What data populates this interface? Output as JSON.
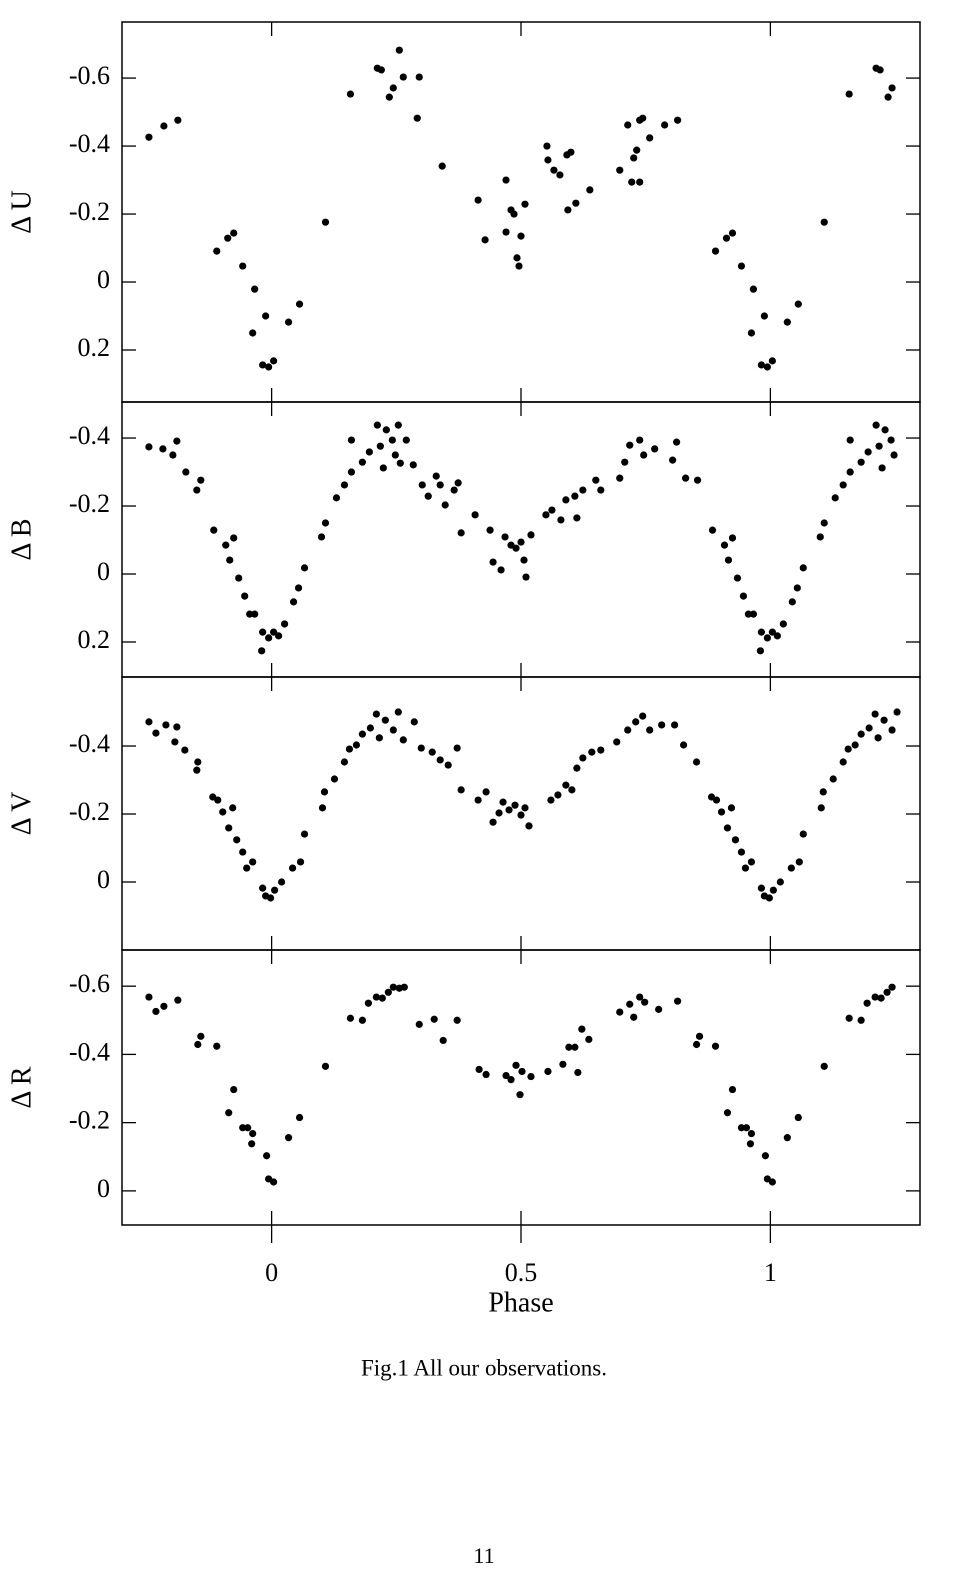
{
  "chart_data": [
    {
      "type": "scatter",
      "ylabel": "Δ U",
      "xlim": [
        -0.3,
        1.3
      ],
      "xticks": [
        0,
        0.5,
        1
      ],
      "ylim": [
        0.353,
        -0.765
      ],
      "yticks": [
        -0.6,
        -0.4,
        -0.2,
        0,
        0.2
      ],
      "x": [
        -0.246,
        -0.216,
        -0.188,
        -0.11,
        -0.088,
        -0.076,
        -0.058,
        -0.034,
        -0.038,
        -0.012,
        -0.018,
        -0.006,
        0.004,
        0.034,
        0.056,
        0.108,
        0.158,
        0.212,
        0.22,
        0.236,
        0.244,
        0.256,
        0.264,
        0.296,
        0.292,
        0.342,
        0.414,
        0.428,
        0.47,
        0.47,
        0.48,
        0.486,
        0.492,
        0.496,
        0.5,
        0.508,
        0.552,
        0.554,
        0.566,
        0.578,
        0.592,
        0.6,
        0.594,
        0.61,
        0.638,
        0.698,
        0.714,
        0.722,
        0.726,
        0.738,
        0.738,
        0.732,
        0.744,
        0.758,
        0.788,
        0.814,
        0.89,
        0.912,
        0.924,
        0.942,
        0.966,
        0.962,
        0.988,
        0.982,
        0.994,
        1.004,
        1.034,
        1.056,
        1.108,
        1.158,
        1.212,
        1.22,
        1.236,
        1.244
      ],
      "values": [
        -0.426,
        -0.459,
        -0.476,
        -0.091,
        -0.129,
        -0.144,
        -0.047,
        0.021,
        0.15,
        0.1,
        0.244,
        0.25,
        0.232,
        0.118,
        0.065,
        -0.176,
        -0.553,
        -0.629,
        -0.624,
        -0.544,
        -0.571,
        -0.682,
        -0.603,
        -0.603,
        -0.482,
        -0.341,
        -0.241,
        -0.124,
        -0.3,
        -0.147,
        -0.212,
        -0.2,
        -0.071,
        -0.047,
        -0.135,
        -0.229,
        -0.4,
        -0.359,
        -0.329,
        -0.315,
        -0.374,
        -0.382,
        -0.212,
        -0.232,
        -0.271,
        -0.329,
        -0.462,
        -0.294,
        -0.365,
        -0.294,
        -0.476,
        -0.388,
        -0.482,
        -0.424,
        -0.462,
        -0.476,
        -0.091,
        -0.129,
        -0.144,
        -0.047,
        0.021,
        0.15,
        0.1,
        0.244,
        0.25,
        0.232,
        0.118,
        0.065,
        -0.176,
        -0.553,
        -0.629,
        -0.624,
        -0.544,
        -0.571
      ]
    },
    {
      "type": "scatter",
      "ylabel": "Δ B",
      "xlim": [
        -0.3,
        1.3
      ],
      "xticks": [
        0,
        0.5,
        1
      ],
      "ylim": [
        0.303,
        -0.506
      ],
      "yticks": [
        -0.4,
        -0.2,
        0,
        0.2
      ],
      "x": [
        -0.246,
        -0.218,
        -0.19,
        -0.198,
        -0.172,
        -0.142,
        -0.15,
        -0.116,
        -0.092,
        -0.076,
        -0.084,
        -0.066,
        -0.054,
        -0.044,
        -0.034,
        -0.02,
        -0.018,
        -0.006,
        0.004,
        0.014,
        0.026,
        0.044,
        0.054,
        0.066,
        0.1,
        0.108,
        0.13,
        0.146,
        0.16,
        0.16,
        0.182,
        0.196,
        0.212,
        0.218,
        0.224,
        0.23,
        0.242,
        0.248,
        0.254,
        0.258,
        0.27,
        0.284,
        0.302,
        0.314,
        0.33,
        0.338,
        0.348,
        0.366,
        0.374,
        0.38,
        0.408,
        0.438,
        0.444,
        0.46,
        0.468,
        0.48,
        0.49,
        0.5,
        0.506,
        0.51,
        0.52,
        0.55,
        0.562,
        0.58,
        0.59,
        0.608,
        0.612,
        0.624,
        0.65,
        0.66,
        0.698,
        0.708,
        0.718,
        0.738,
        0.746,
        0.768,
        0.804,
        0.812,
        0.83,
        0.854,
        0.884,
        0.908,
        0.924,
        0.916,
        0.934,
        0.946,
        0.956,
        0.966,
        0.98,
        0.982,
        0.994,
        1.004,
        1.014,
        1.026,
        1.044,
        1.054,
        1.066,
        1.1,
        1.108,
        1.13,
        1.146,
        1.16,
        1.16,
        1.182,
        1.196,
        1.212,
        1.218,
        1.224,
        1.23,
        1.242,
        1.248
      ],
      "values": [
        -0.374,
        -0.368,
        -0.391,
        -0.35,
        -0.3,
        -0.276,
        -0.247,
        -0.129,
        -0.085,
        -0.106,
        -0.041,
        0.012,
        0.065,
        0.118,
        0.118,
        0.226,
        0.171,
        0.188,
        0.171,
        0.182,
        0.147,
        0.082,
        0.041,
        -0.018,
        -0.109,
        -0.15,
        -0.224,
        -0.262,
        -0.3,
        -0.394,
        -0.329,
        -0.359,
        -0.438,
        -0.376,
        -0.312,
        -0.424,
        -0.394,
        -0.35,
        -0.438,
        -0.326,
        -0.394,
        -0.321,
        -0.262,
        -0.229,
        -0.288,
        -0.262,
        -0.203,
        -0.247,
        -0.268,
        -0.121,
        -0.174,
        -0.129,
        -0.035,
        -0.012,
        -0.109,
        -0.085,
        -0.076,
        -0.094,
        -0.041,
        0.009,
        -0.115,
        -0.174,
        -0.188,
        -0.159,
        -0.218,
        -0.229,
        -0.165,
        -0.247,
        -0.276,
        -0.247,
        -0.282,
        -0.329,
        -0.379,
        -0.394,
        -0.35,
        -0.368,
        -0.335,
        -0.388,
        -0.282,
        -0.276,
        -0.129,
        -0.085,
        -0.106,
        -0.041,
        0.012,
        0.065,
        0.118,
        0.118,
        0.226,
        0.171,
        0.188,
        0.171,
        0.182,
        0.147,
        0.082,
        0.041,
        -0.018,
        -0.109,
        -0.15,
        -0.224,
        -0.262,
        -0.3,
        -0.394,
        -0.329,
        -0.359,
        -0.438,
        -0.376,
        -0.312,
        -0.424,
        -0.394,
        -0.35
      ]
    },
    {
      "type": "scatter",
      "ylabel": "Δ V",
      "xlim": [
        -0.3,
        1.3
      ],
      "xticks": [
        0,
        0.5,
        1
      ],
      "ylim": [
        0.2,
        -0.603
      ],
      "yticks": [
        -0.4,
        -0.2,
        0
      ],
      "x": [
        -0.246,
        -0.232,
        -0.212,
        -0.19,
        -0.194,
        -0.174,
        -0.148,
        -0.15,
        -0.118,
        -0.108,
        -0.098,
        -0.078,
        -0.086,
        -0.07,
        -0.058,
        -0.05,
        -0.038,
        -0.018,
        -0.012,
        -0.002,
        0.006,
        0.02,
        0.042,
        0.058,
        0.066,
        0.102,
        0.106,
        0.126,
        0.146,
        0.156,
        0.17,
        0.182,
        0.198,
        0.21,
        0.216,
        0.228,
        0.244,
        0.254,
        0.264,
        0.286,
        0.3,
        0.322,
        0.338,
        0.354,
        0.372,
        0.38,
        0.414,
        0.43,
        0.444,
        0.456,
        0.464,
        0.476,
        0.488,
        0.5,
        0.508,
        0.516,
        0.56,
        0.574,
        0.59,
        0.602,
        0.612,
        0.624,
        0.642,
        0.66,
        0.692,
        0.714,
        0.73,
        0.744,
        0.758,
        0.782,
        0.808,
        0.826,
        0.852,
        0.882,
        0.892,
        0.902,
        0.922,
        0.914,
        0.93,
        0.942,
        0.95,
        0.962,
        0.982,
        0.988,
        0.998,
        1.006,
        1.02,
        1.042,
        1.058,
        1.066,
        1.102,
        1.106,
        1.126,
        1.146,
        1.156,
        1.17,
        1.182,
        1.198,
        1.21,
        1.216,
        1.228,
        1.244,
        1.254
      ],
      "values": [
        -0.471,
        -0.438,
        -0.462,
        -0.456,
        -0.412,
        -0.388,
        -0.353,
        -0.329,
        -0.25,
        -0.241,
        -0.206,
        -0.218,
        -0.159,
        -0.124,
        -0.088,
        -0.041,
        -0.059,
        0.018,
        0.041,
        0.047,
        0.024,
        0,
        -0.041,
        -0.059,
        -0.141,
        -0.218,
        -0.265,
        -0.303,
        -0.353,
        -0.391,
        -0.403,
        -0.435,
        -0.453,
        -0.494,
        -0.424,
        -0.476,
        -0.447,
        -0.5,
        -0.418,
        -0.471,
        -0.394,
        -0.382,
        -0.359,
        -0.344,
        -0.394,
        -0.271,
        -0.241,
        -0.265,
        -0.176,
        -0.203,
        -0.235,
        -0.212,
        -0.226,
        -0.197,
        -0.218,
        -0.165,
        -0.241,
        -0.256,
        -0.285,
        -0.271,
        -0.335,
        -0.365,
        -0.382,
        -0.388,
        -0.412,
        -0.447,
        -0.471,
        -0.488,
        -0.447,
        -0.462,
        -0.462,
        -0.403,
        -0.353,
        -0.25,
        -0.241,
        -0.206,
        -0.218,
        -0.159,
        -0.124,
        -0.088,
        -0.041,
        -0.059,
        0.018,
        0.041,
        0.047,
        0.024,
        0,
        -0.041,
        -0.059,
        -0.141,
        -0.218,
        -0.265,
        -0.303,
        -0.353,
        -0.391,
        -0.403,
        -0.435,
        -0.453,
        -0.494,
        -0.424,
        -0.476,
        -0.447,
        -0.5
      ]
    },
    {
      "type": "scatter",
      "ylabel": "Δ R",
      "xlabel": "Phase",
      "xlim": [
        -0.3,
        1.3
      ],
      "xticks": [
        0,
        0.5,
        1
      ],
      "ylim": [
        0.1,
        -0.706
      ],
      "yticks": [
        -0.6,
        -0.4,
        -0.2,
        0
      ],
      "x": [
        -0.246,
        -0.232,
        -0.216,
        -0.188,
        -0.148,
        -0.142,
        -0.11,
        -0.086,
        -0.076,
        -0.058,
        -0.048,
        -0.04,
        -0.038,
        -0.01,
        -0.006,
        0.004,
        0.034,
        0.056,
        0.108,
        0.158,
        0.182,
        0.194,
        0.21,
        0.222,
        0.234,
        0.244,
        0.256,
        0.266,
        0.296,
        0.326,
        0.344,
        0.372,
        0.416,
        0.43,
        0.47,
        0.48,
        0.49,
        0.498,
        0.502,
        0.52,
        0.554,
        0.584,
        0.596,
        0.608,
        0.614,
        0.622,
        0.636,
        0.698,
        0.718,
        0.726,
        0.738,
        0.748,
        0.776,
        0.814,
        0.852,
        0.858,
        0.89,
        0.914,
        0.924,
        0.942,
        0.952,
        0.96,
        0.962,
        0.99,
        0.994,
        1.004,
        1.034,
        1.056,
        1.108,
        1.158,
        1.182,
        1.194,
        1.21,
        1.222,
        1.234,
        1.244
      ],
      "values": [
        -0.568,
        -0.526,
        -0.541,
        -0.559,
        -0.429,
        -0.453,
        -0.424,
        -0.229,
        -0.297,
        -0.185,
        -0.185,
        -0.138,
        -0.168,
        -0.103,
        -0.035,
        -0.026,
        -0.156,
        -0.215,
        -0.365,
        -0.506,
        -0.5,
        -0.55,
        -0.568,
        -0.565,
        -0.582,
        -0.597,
        -0.594,
        -0.597,
        -0.488,
        -0.503,
        -0.441,
        -0.5,
        -0.356,
        -0.341,
        -0.338,
        -0.326,
        -0.368,
        -0.282,
        -0.35,
        -0.335,
        -0.35,
        -0.371,
        -0.421,
        -0.421,
        -0.347,
        -0.474,
        -0.444,
        -0.524,
        -0.547,
        -0.509,
        -0.568,
        -0.553,
        -0.532,
        -0.556,
        -0.429,
        -0.453,
        -0.424,
        -0.229,
        -0.297,
        -0.185,
        -0.185,
        -0.138,
        -0.168,
        -0.103,
        -0.035,
        -0.026,
        -0.156,
        -0.215,
        -0.365,
        -0.506,
        -0.5,
        -0.55,
        -0.568,
        -0.565,
        -0.582,
        -0.597
      ]
    }
  ],
  "caption": "Fig.1 All our observations.",
  "page_number": "11"
}
